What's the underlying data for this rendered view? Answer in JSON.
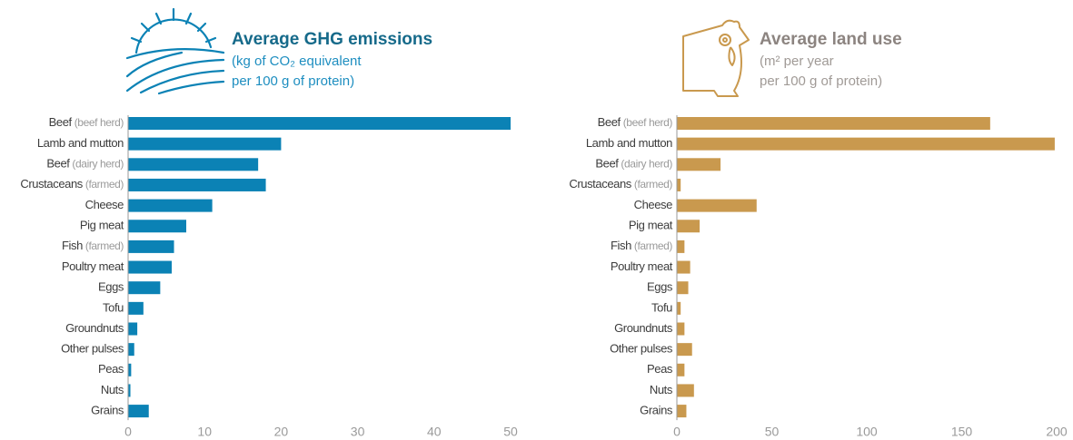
{
  "chart_data": [
    {
      "type": "bar",
      "orientation": "horizontal",
      "title": "Average GHG emissions",
      "subtitle": [
        "(kg of CO₂ equivalent",
        "per 100 g of protein)"
      ],
      "categories": [
        "Beef (beef herd)",
        "Lamb and mutton",
        "Beef (dairy herd)",
        "Crustaceans (farmed)",
        "Cheese",
        "Pig meat",
        "Fish (farmed)",
        "Poultry meat",
        "Eggs",
        "Tofu",
        "Groundnuts",
        "Other pulses",
        "Peas",
        "Nuts",
        "Grains"
      ],
      "values": [
        50,
        20,
        17,
        18,
        11,
        7.6,
        6,
        5.7,
        4.2,
        2,
        1.2,
        0.8,
        0.4,
        0.3,
        2.7
      ],
      "color": "#0b82b5",
      "xlim": [
        0,
        50
      ],
      "xticks": [
        0,
        10,
        20,
        30,
        40,
        50
      ]
    },
    {
      "type": "bar",
      "orientation": "horizontal",
      "title": "Average land use",
      "subtitle": [
        "(m² per year",
        "per 100 g of protein)"
      ],
      "categories": [
        "Beef (beef herd)",
        "Lamb and mutton",
        "Beef (dairy herd)",
        "Crustaceans (farmed)",
        "Cheese",
        "Pig meat",
        "Fish (farmed)",
        "Poultry meat",
        "Eggs",
        "Tofu",
        "Groundnuts",
        "Other pulses",
        "Peas",
        "Nuts",
        "Grains"
      ],
      "values": [
        165,
        199,
        23,
        2,
        42,
        12,
        4,
        7,
        6,
        2,
        4,
        8,
        4,
        9,
        5
      ],
      "color": "#c9994e",
      "xlim": [
        0,
        200
      ],
      "xticks": [
        0,
        50,
        100,
        150,
        200
      ]
    }
  ]
}
